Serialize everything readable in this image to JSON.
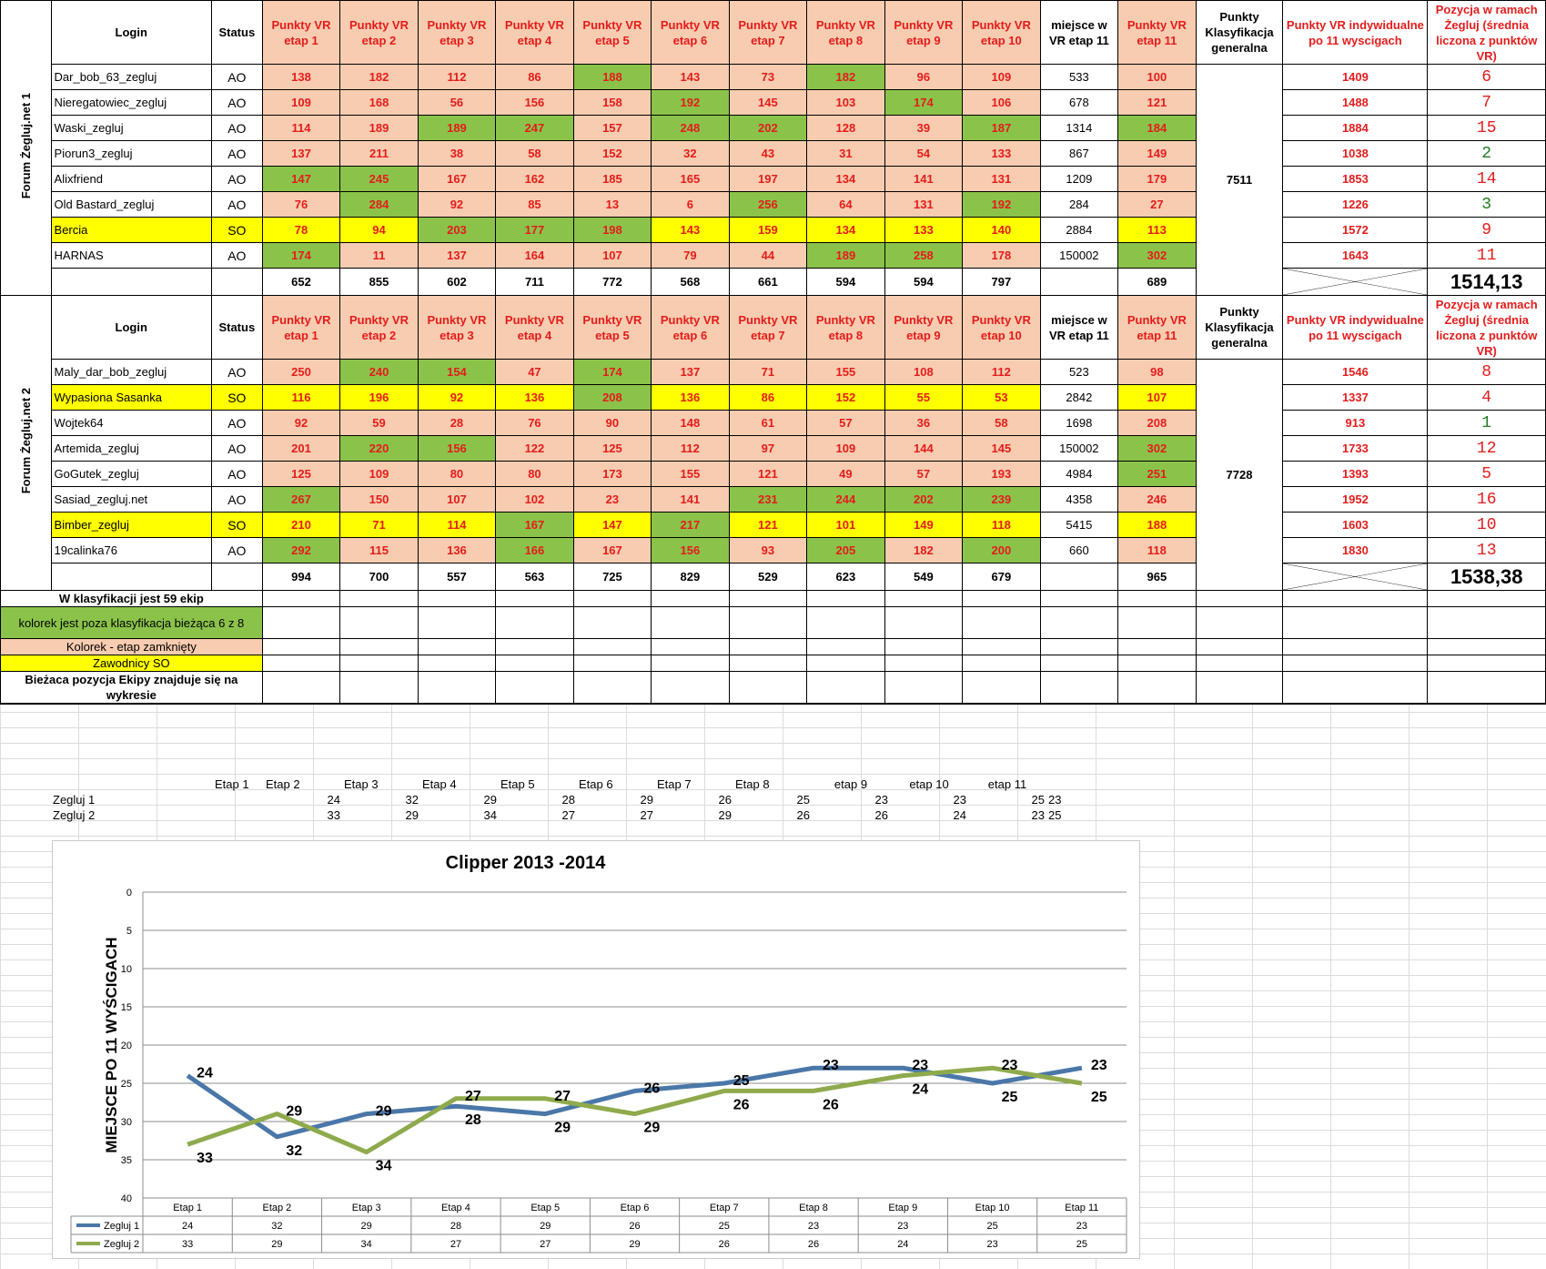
{
  "table": {
    "headers": {
      "login": "Login",
      "status": "Status",
      "etap": [
        "Punkty VR etap 1",
        "Punkty VR etap 2",
        "Punkty VR etap 3",
        "Punkty VR etap 4",
        "Punkty VR etap 5",
        "Punkty VR etap 6",
        "Punkty VR etap 7",
        "Punkty VR etap 8",
        "Punkty VR etap 9",
        "Punkty VR etap 10"
      ],
      "miejsce": "miejsce w VR etap 11",
      "etap11": "Punkty VR etap 11",
      "klas": "Punkty Klasyfikacja generalna",
      "indyw": "Punkty VR indywidualne po 11 wyscigach",
      "pozycja": "Pozycja w ramach Żegluj (średnia liczona z punktów VR)"
    },
    "teams": [
      {
        "name": "Forum Żegluj.net 1",
        "klasyfikacja": "7511",
        "players": [
          {
            "login": "Dar_bob_63_zegluj",
            "status": "AO",
            "so": false,
            "etapy": [
              "138",
              "182",
              "112",
              "86",
              "188",
              "143",
              "73",
              "182",
              "96",
              "109"
            ],
            "green": [
              4,
              7
            ],
            "miejsce": "533",
            "etap11": "100",
            "g11": false,
            "indyw": "1409",
            "pozycja": "6",
            "pgreen": false
          },
          {
            "login": "Nieregatowiec_zegluj",
            "status": "AO",
            "so": false,
            "etapy": [
              "109",
              "168",
              "56",
              "156",
              "158",
              "192",
              "145",
              "103",
              "174",
              "106"
            ],
            "green": [
              5,
              8
            ],
            "miejsce": "678",
            "etap11": "121",
            "g11": false,
            "indyw": "1488",
            "pozycja": "7",
            "pgreen": false
          },
          {
            "login": "Waski_zegluj",
            "status": "AO",
            "so": false,
            "etapy": [
              "114",
              "189",
              "189",
              "247",
              "157",
              "248",
              "202",
              "128",
              "39",
              "187"
            ],
            "green": [
              2,
              3,
              5,
              6,
              9
            ],
            "miejsce": "1314",
            "etap11": "184",
            "g11": true,
            "indyw": "1884",
            "pozycja": "15",
            "pgreen": false
          },
          {
            "login": "Piorun3_zegluj",
            "status": "AO",
            "so": false,
            "etapy": [
              "137",
              "211",
              "38",
              "58",
              "152",
              "32",
              "43",
              "31",
              "54",
              "133"
            ],
            "green": [],
            "miejsce": "867",
            "etap11": "149",
            "g11": false,
            "indyw": "1038",
            "pozycja": "2",
            "pgreen": true
          },
          {
            "login": "Alixfriend",
            "status": "AO",
            "so": false,
            "etapy": [
              "147",
              "245",
              "167",
              "162",
              "185",
              "165",
              "197",
              "134",
              "141",
              "131"
            ],
            "green": [
              0,
              1
            ],
            "miejsce": "1209",
            "etap11": "179",
            "g11": false,
            "indyw": "1853",
            "pozycja": "14",
            "pgreen": false
          },
          {
            "login": "Old Bastard_zegluj",
            "status": "AO",
            "so": false,
            "etapy": [
              "76",
              "284",
              "92",
              "85",
              "13",
              "6",
              "256",
              "64",
              "131",
              "192"
            ],
            "green": [
              1,
              6,
              9
            ],
            "miejsce": "284",
            "etap11": "27",
            "g11": false,
            "indyw": "1226",
            "pozycja": "3",
            "pgreen": true
          },
          {
            "login": "Bercia",
            "status": "SO",
            "so": true,
            "etapy": [
              "78",
              "94",
              "203",
              "177",
              "198",
              "143",
              "159",
              "134",
              "133",
              "140"
            ],
            "green": [
              2,
              3,
              4
            ],
            "miejsce": "2884",
            "etap11": "113",
            "g11": false,
            "indyw": "1572",
            "pozycja": "9",
            "pgreen": false
          },
          {
            "login": "HARNAS",
            "status": "AO",
            "so": false,
            "etapy": [
              "174",
              "11",
              "137",
              "164",
              "107",
              "79",
              "44",
              "189",
              "258",
              "178"
            ],
            "green": [
              0,
              7,
              8
            ],
            "miejsce": "150002",
            "etap11": "302",
            "g11": true,
            "indyw": "1643",
            "pozycja": "11",
            "pgreen": false
          }
        ],
        "totals": [
          "652",
          "855",
          "602",
          "711",
          "772",
          "568",
          "661",
          "594",
          "594",
          "797"
        ],
        "total11": "689",
        "avg": "1514,13"
      },
      {
        "name": "Forum Żegluj.net 2",
        "klasyfikacja": "7728",
        "players": [
          {
            "login": "Maly_dar_bob_zegluj",
            "status": "AO",
            "so": false,
            "etapy": [
              "250",
              "240",
              "154",
              "47",
              "174",
              "137",
              "71",
              "155",
              "108",
              "112"
            ],
            "green": [
              1,
              2,
              4
            ],
            "miejsce": "523",
            "etap11": "98",
            "g11": false,
            "indyw": "1546",
            "pozycja": "8",
            "pgreen": false
          },
          {
            "login": "Wypasiona Sasanka",
            "status": "SO",
            "so": true,
            "etapy": [
              "116",
              "196",
              "92",
              "136",
              "208",
              "136",
              "86",
              "152",
              "55",
              "53"
            ],
            "green": [
              4
            ],
            "miejsce": "2842",
            "etap11": "107",
            "g11": false,
            "indyw": "1337",
            "pozycja": "4",
            "pgreen": false
          },
          {
            "login": "Wojtek64",
            "status": "AO",
            "so": false,
            "etapy": [
              "92",
              "59",
              "28",
              "76",
              "90",
              "148",
              "61",
              "57",
              "36",
              "58"
            ],
            "green": [],
            "miejsce": "1698",
            "etap11": "208",
            "g11": false,
            "indyw": "913",
            "pozycja": "1",
            "pgreen": true
          },
          {
            "login": "Artemida_zegluj",
            "status": "AO",
            "so": false,
            "etapy": [
              "201",
              "220",
              "156",
              "122",
              "125",
              "112",
              "97",
              "109",
              "144",
              "145"
            ],
            "green": [
              1,
              2
            ],
            "miejsce": "150002",
            "etap11": "302",
            "g11": true,
            "indyw": "1733",
            "pozycja": "12",
            "pgreen": false
          },
          {
            "login": "GoGutek_zegluj",
            "status": "AO",
            "so": false,
            "etapy": [
              "125",
              "109",
              "80",
              "80",
              "173",
              "155",
              "121",
              "49",
              "57",
              "193"
            ],
            "green": [],
            "miejsce": "4984",
            "etap11": "251",
            "g11": true,
            "indyw": "1393",
            "pozycja": "5",
            "pgreen": false
          },
          {
            "login": "Sasiad_zegluj.net",
            "status": "AO",
            "so": false,
            "etapy": [
              "267",
              "150",
              "107",
              "102",
              "23",
              "141",
              "231",
              "244",
              "202",
              "239"
            ],
            "green": [
              0,
              6,
              7,
              8,
              9
            ],
            "miejsce": "4358",
            "etap11": "246",
            "g11": false,
            "indyw": "1952",
            "pozycja": "16",
            "pgreen": false
          },
          {
            "login": "Bimber_zegluj",
            "status": "SO",
            "so": true,
            "etapy": [
              "210",
              "71",
              "114",
              "167",
              "147",
              "217",
              "121",
              "101",
              "149",
              "118"
            ],
            "green": [
              3,
              5
            ],
            "miejsce": "5415",
            "etap11": "188",
            "g11": false,
            "indyw": "1603",
            "pozycja": "10",
            "pgreen": false
          },
          {
            "login": "19calinka76",
            "status": "AO",
            "so": false,
            "etapy": [
              "292",
              "115",
              "136",
              "166",
              "167",
              "156",
              "93",
              "205",
              "182",
              "200"
            ],
            "green": [
              0,
              3,
              5,
              7,
              9
            ],
            "miejsce": "660",
            "etap11": "118",
            "g11": false,
            "indyw": "1830",
            "pozycja": "13",
            "pgreen": false
          }
        ],
        "totals": [
          "994",
          "700",
          "557",
          "563",
          "725",
          "829",
          "529",
          "623",
          "549",
          "679"
        ],
        "total11": "965",
        "avg": "1538,38"
      }
    ],
    "legend": {
      "ekip": "W klasyfikacji jest 59 ekip",
      "green": "kolorek jest  poza klasyfikacja bieżąca 6 z 8",
      "orange": "Kolorek - etap zamknięty",
      "yellow": "Zawodnicy SO",
      "note": "Bieżaca pozycja Ekipy znajduje się na wykresie"
    }
  },
  "mini_table": {
    "headers": [
      "Etap 1",
      "Etap 2",
      "Etap 3",
      "Etap 4",
      "Etap 5",
      "Etap 6",
      "Etap 7",
      "Etap 8",
      "etap 9",
      "etap 10",
      "etap 11"
    ],
    "rows": [
      {
        "label": "Zegluj 1",
        "values": [
          "24",
          "32",
          "29",
          "28",
          "29",
          "26",
          "25",
          "23",
          "23",
          "25",
          "23"
        ]
      },
      {
        "label": "Zegluj 2",
        "values": [
          "33",
          "29",
          "34",
          "27",
          "27",
          "29",
          "26",
          "26",
          "24",
          "23",
          "25"
        ]
      }
    ]
  },
  "colors": {
    "green": "#8bc34a",
    "orange": "#f8ccb0",
    "yellow": "#ffff00",
    "red": "#e31c1c",
    "series1": "#4a77a8",
    "series2": "#8faa4c"
  },
  "chart_data": {
    "type": "line",
    "title": "Clipper 2013 -2014",
    "ylabel": "MIEJSCE PO 11 WYŚCIGACH",
    "xlabel": "",
    "categories": [
      "Etap 1",
      "Etap 2",
      "Etap 3",
      "Etap 4",
      "Etap 5",
      "Etap 6",
      "Etap 7",
      "Etap 8",
      "Etap 9",
      "Etap 10",
      "Etap 11"
    ],
    "series": [
      {
        "name": "Zegluj 1",
        "values": [
          24,
          32,
          29,
          28,
          29,
          26,
          25,
          23,
          23,
          25,
          23
        ]
      },
      {
        "name": "Zegluj 2",
        "values": [
          33,
          29,
          34,
          27,
          27,
          29,
          26,
          26,
          24,
          23,
          25
        ]
      }
    ],
    "ylim": [
      0,
      40
    ],
    "yticks": [
      0,
      5,
      10,
      15,
      20,
      25,
      30,
      35,
      40
    ],
    "y_inverted": true,
    "grid": true,
    "legend": "data-table-below",
    "data_labels": true
  }
}
